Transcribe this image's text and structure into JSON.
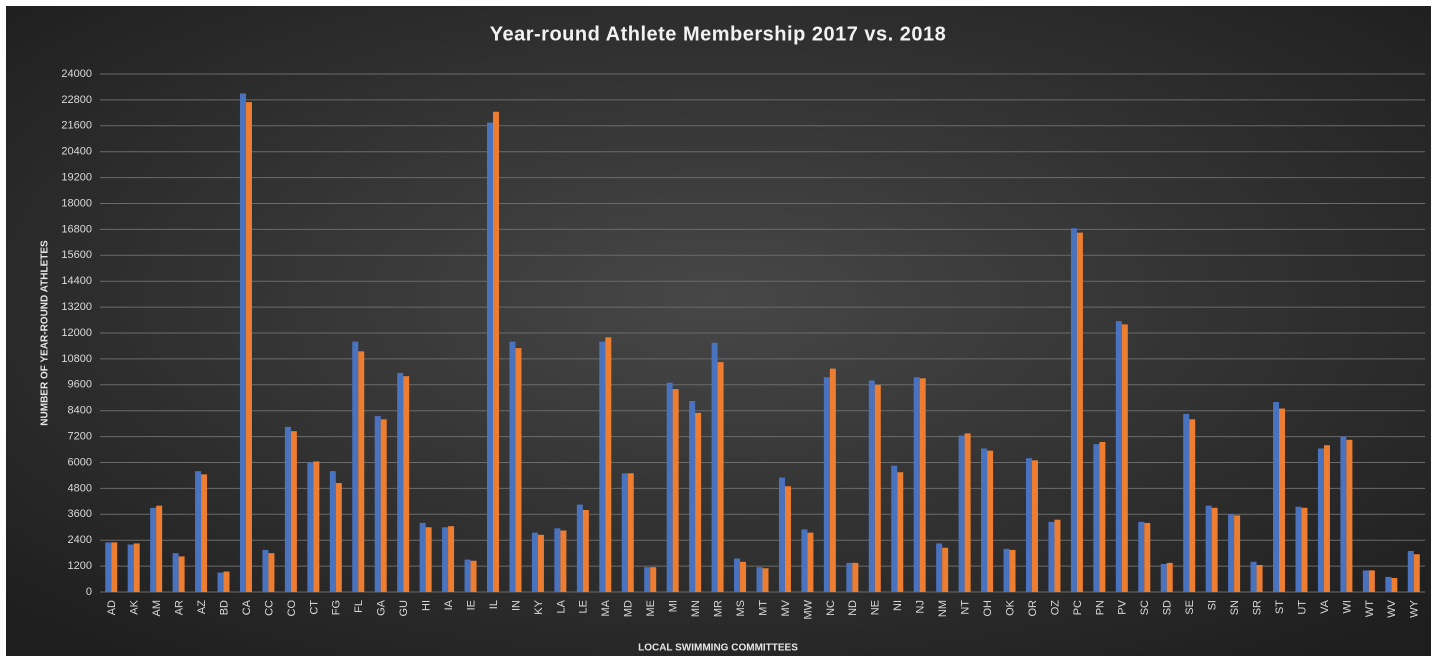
{
  "chart_data": {
    "type": "bar",
    "title": "Year-round Athlete Membership 2017 vs. 2018",
    "y_label": "NUMBER OF YEAR-ROUND ATHLETES",
    "x_label": "LOCAL SWIMMING COMMITTEES",
    "categories": [
      "AD",
      "AK",
      "AM",
      "AR",
      "AZ",
      "BD",
      "CA",
      "CC",
      "CO",
      "CT",
      "FG",
      "FL",
      "GA",
      "GU",
      "HI",
      "IA",
      "IE",
      "IL",
      "IN",
      "KY",
      "LA",
      "LE",
      "MA",
      "MD",
      "ME",
      "MI",
      "MN",
      "MR",
      "MS",
      "MT",
      "MV",
      "MW",
      "NC",
      "ND",
      "NE",
      "NI",
      "NJ",
      "NM",
      "NT",
      "OH",
      "OK",
      "OR",
      "OZ",
      "PC",
      "PN",
      "PV",
      "SC",
      "SD",
      "SE",
      "SI",
      "SN",
      "SR",
      "ST",
      "UT",
      "VA",
      "WI",
      "WT",
      "WV",
      "WY"
    ],
    "series": [
      {
        "color": "#4a73bf",
        "values": [
          2300,
          2200,
          3900,
          1800,
          5600,
          900,
          23100,
          1950,
          7650,
          6000,
          5600,
          11600,
          8150,
          10150,
          3200,
          3000,
          1500,
          21750,
          11600,
          2750,
          2950,
          4050,
          11600,
          5500,
          1150,
          9700,
          8850,
          11550,
          1550,
          1150,
          5300,
          2900,
          9950,
          1350,
          9800,
          5850,
          9950,
          2250,
          7250,
          6650,
          2000,
          6200,
          3250,
          16850,
          6850,
          12550,
          3250,
          1300,
          8250,
          4000,
          3600,
          1400,
          8800,
          3950,
          6650,
          7200,
          1000,
          700,
          1900
        ]
      },
      {
        "color": "#ed7d31",
        "values": [
          2300,
          2250,
          4000,
          1650,
          5450,
          950,
          22700,
          1800,
          7450,
          6050,
          5050,
          11150,
          8000,
          10000,
          3000,
          3050,
          1450,
          22250,
          11300,
          2650,
          2850,
          3800,
          11800,
          5500,
          1150,
          9400,
          8300,
          10650,
          1400,
          1100,
          4900,
          2750,
          10350,
          1350,
          9600,
          5550,
          9900,
          2050,
          7350,
          6550,
          1950,
          6100,
          3350,
          16650,
          6950,
          12400,
          3200,
          1350,
          8000,
          3900,
          3550,
          1250,
          8500,
          3900,
          6800,
          7050,
          1000,
          650,
          1750
        ]
      }
    ],
    "ylim": [
      0,
      24000
    ],
    "yticks": [
      0,
      1200,
      2400,
      3600,
      4800,
      6000,
      7200,
      8400,
      9600,
      10800,
      12000,
      13200,
      14400,
      15600,
      16800,
      18000,
      19200,
      20400,
      21600,
      22800,
      24000
    ],
    "grid": true
  }
}
